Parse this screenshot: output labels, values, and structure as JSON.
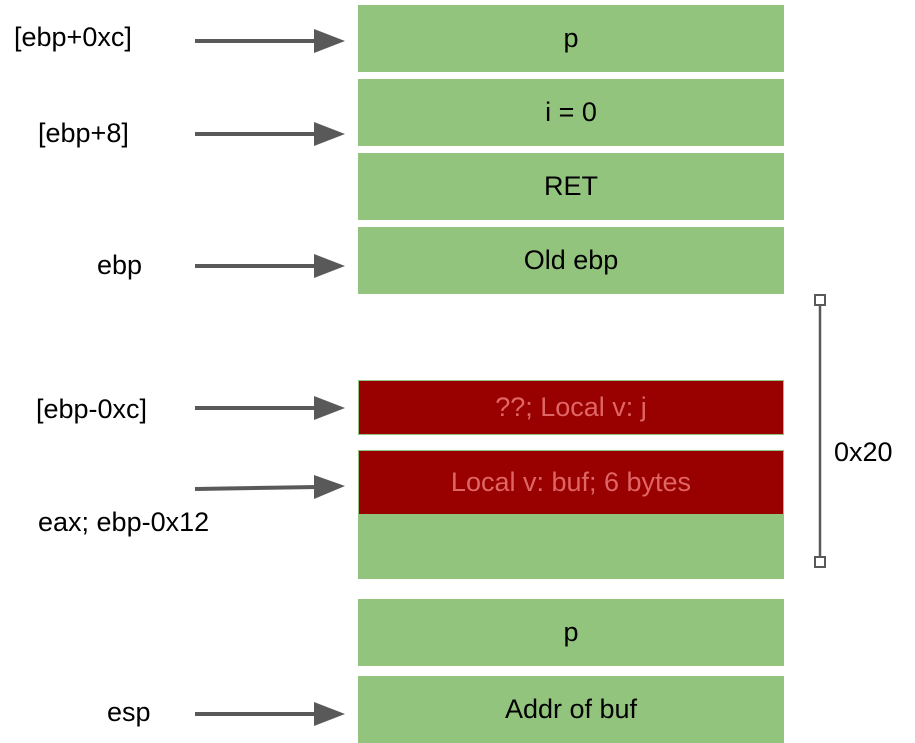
{
  "colors": {
    "green_cell": "#93c47d",
    "red_cell": "#990000",
    "red_text": "#e06666",
    "arrow": "#595959",
    "bracket": "#595959"
  },
  "stack": {
    "p_top": "p",
    "i_zero": "i = 0",
    "ret": "RET",
    "old_ebp": "Old ebp",
    "local_j": "??; Local v: j",
    "local_buf": "Local v: buf; 6 bytes",
    "empty_cell": "",
    "p_bottom": "p",
    "addr_buf": "Addr of buf"
  },
  "labels": {
    "ebp_plus_0xc": "[ebp+0xc]",
    "ebp_plus_8": "[ebp+8]",
    "ebp": "ebp",
    "ebp_minus_0xc": "[ebp-0xc]",
    "eax_ebp_minus_0x12": "eax; ebp-0x12",
    "esp": "esp"
  },
  "bracket_label": "0x20"
}
